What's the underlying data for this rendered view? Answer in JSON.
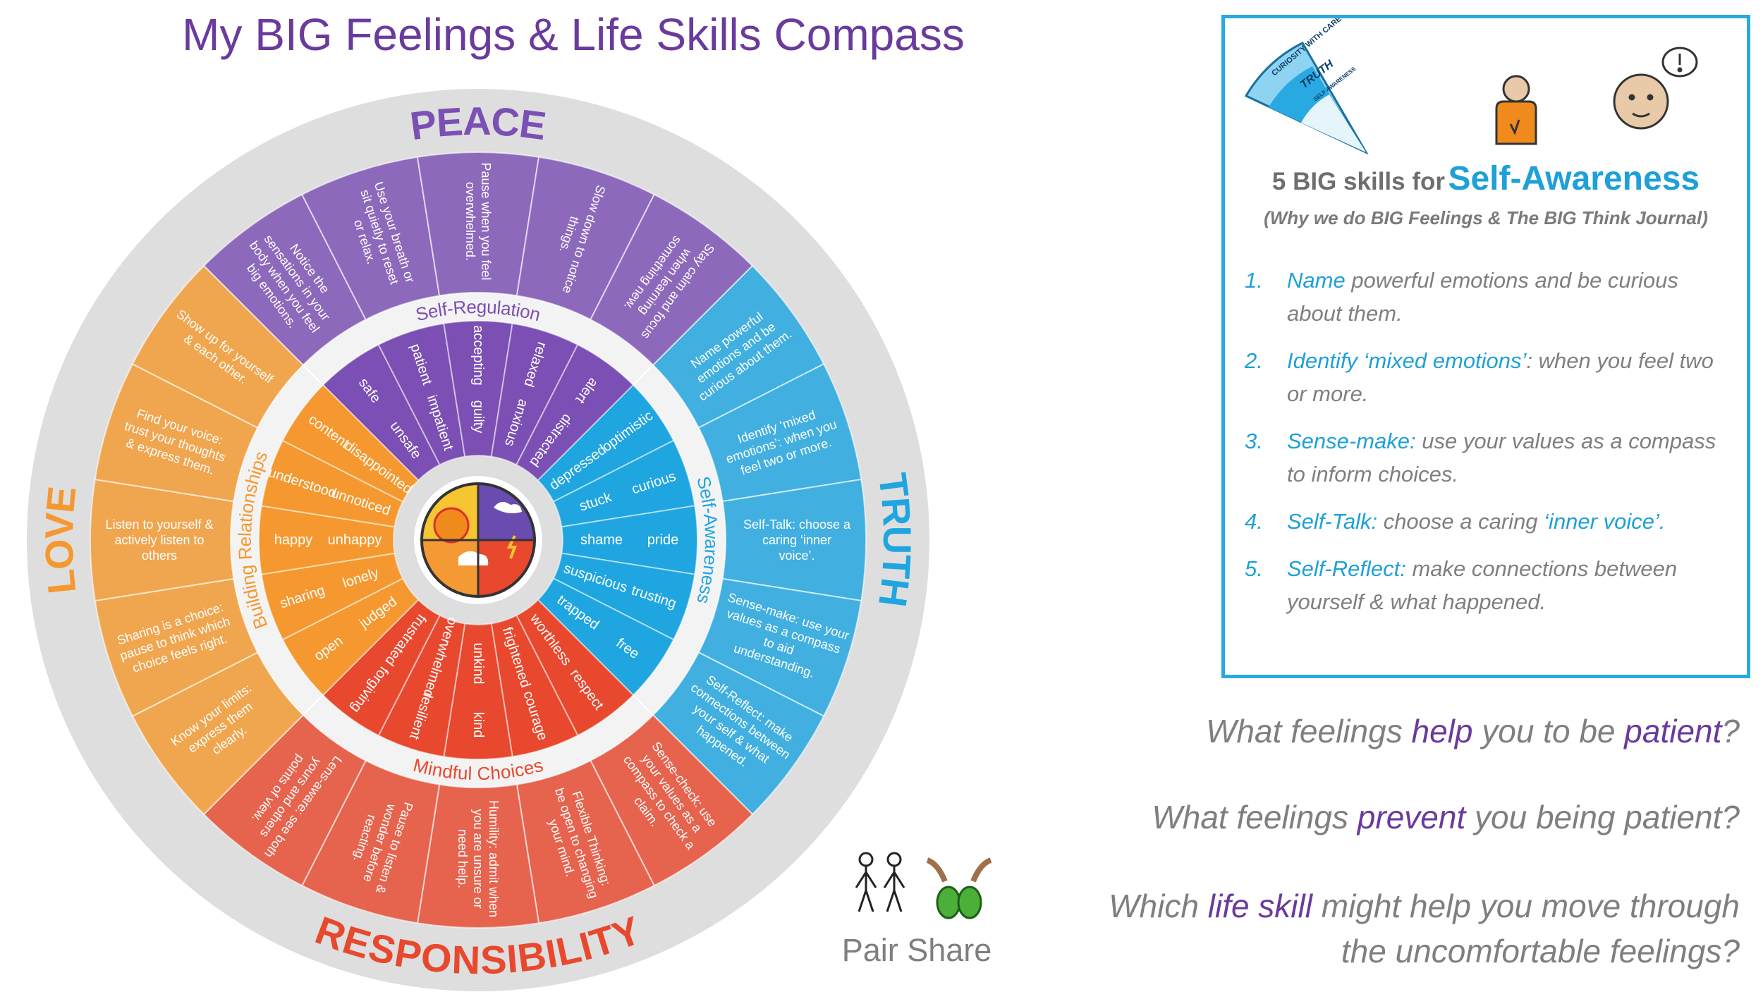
{
  "title": "My BIG Feelings & Life Skills Compass",
  "wheel": {
    "quadrants": [
      {
        "name": "PEACE",
        "color": "#7b4fb3",
        "skill_area": "Self-Regulation",
        "skills": [
          "Notice the sensations in your body when you feel big emotions.",
          "Use your breath or sit quietly to reset or relax.",
          "Pause when you feel overwhelmed.",
          "Slow down to notice things.",
          "Stay calm and focus when learning something new."
        ],
        "feelings": [
          {
            "positive": "safe",
            "negative": "unsafe"
          },
          {
            "positive": "patient",
            "negative": "impatient"
          },
          {
            "positive": "accepting",
            "negative": "guilty"
          },
          {
            "positive": "relaxed",
            "negative": "anxious"
          },
          {
            "positive": "alert",
            "negative": "distracted"
          }
        ]
      },
      {
        "name": "TRUTH",
        "color": "#1fa5e0",
        "skill_area": "Self-Awareness",
        "skills": [
          "Name powerful emotions and be curious about them.",
          "Identify ‘mixed emotions’: when you feel two or more.",
          "Self-Talk: choose a caring ‘inner voice’.",
          "Sense-make: use your values as a compass to aid understanding.",
          "Self-Reflect: make connections between your self & what happened."
        ],
        "feelings": [
          {
            "positive": "optimistic",
            "negative": "depressed"
          },
          {
            "positive": "curious",
            "negative": "stuck"
          },
          {
            "positive": "pride",
            "negative": "shame"
          },
          {
            "positive": "trusting",
            "negative": "suspicious"
          },
          {
            "positive": "free",
            "negative": "trapped"
          }
        ]
      },
      {
        "name": "RESPONSIBILITY",
        "color": "#e8482e",
        "skill_area": "Mindful Choices",
        "skills": [
          "Sense-check: use your values as a compass to check a claim.",
          "Flexible Thinking: be open to changing your mind.",
          "Humility: admit when you are unsure or need help.",
          "Pause to listen & wonder before reacting.",
          "Lens-aware: see both yours and others points of view."
        ],
        "feelings": [
          {
            "positive": "respect",
            "negative": "worthless"
          },
          {
            "positive": "courage",
            "negative": "frightened"
          },
          {
            "positive": "kind",
            "negative": "unkind"
          },
          {
            "positive": "resilient",
            "negative": "overwhelmed"
          },
          {
            "positive": "forgiving",
            "negative": "frustrated"
          }
        ]
      },
      {
        "name": "LOVE",
        "color": "#f4982f",
        "skill_area": "Building Relationships",
        "skills": [
          "Know your limits: express them clearly.",
          "Sharing is a choice: pause to think which choice feels right.",
          "Listen to yourself & actively listen to others",
          "Find your voice: trust your thoughts & express them.",
          "Show up for yourself & each other."
        ],
        "feelings": [
          {
            "positive": "open",
            "negative": "judged"
          },
          {
            "positive": "sharing",
            "negative": "lonely"
          },
          {
            "positive": "happy",
            "negative": "unhappy"
          },
          {
            "positive": "understood",
            "negative": "unnoticed"
          },
          {
            "positive": "content",
            "negative": "disappointed"
          }
        ]
      }
    ]
  },
  "skills_panel": {
    "fan_labels": [
      "CURIOSITY WITH CARE",
      "TRUTH",
      "SELF AWARENESS"
    ],
    "heading_prefix": "5 BIG skills for",
    "heading_highlight": "Self-Awareness",
    "subtitle": "(Why we do BIG Feelings & The BIG Think Journal)",
    "items": [
      {
        "number": "1.",
        "parts": [
          {
            "text": "Name",
            "color": "#1ea0d8"
          },
          {
            "text": " powerful emotions and be curious about them.",
            "color": "#7f7f7f"
          }
        ]
      },
      {
        "number": "2.",
        "parts": [
          {
            "text": "Identify ‘mixed emotions’",
            "color": "#1ea0d8"
          },
          {
            "text": ": when you feel two or more.",
            "color": "#7f7f7f"
          }
        ]
      },
      {
        "number": "3.",
        "parts": [
          {
            "text": "Sense-make:",
            "color": "#1ea0d8"
          },
          {
            "text": " use your values as a compass to inform choices.",
            "color": "#7f7f7f"
          }
        ]
      },
      {
        "number": "4.",
        "parts": [
          {
            "text": "Self-Talk:",
            "color": "#1ea0d8"
          },
          {
            "text": " choose a caring ",
            "color": "#7f7f7f"
          },
          {
            "text": "‘inner voice’.",
            "color": "#1ea0d8"
          }
        ]
      },
      {
        "number": "5.",
        "parts": [
          {
            "text": "Self-Reflect:",
            "color": "#1ea0d8"
          },
          {
            "text": " make connections between yourself & what happened.",
            "color": "#7f7f7f"
          }
        ]
      }
    ]
  },
  "questions": [
    {
      "parts": [
        {
          "text": "What feelings ",
          "color": "#7f7f7f"
        },
        {
          "text": "help",
          "color": "#6a3a9c"
        },
        {
          "text": " you to be ",
          "color": "#7f7f7f"
        },
        {
          "text": "patient",
          "color": "#6a3a9c"
        },
        {
          "text": "?",
          "color": "#7f7f7f"
        }
      ]
    },
    {
      "parts": [
        {
          "text": "What feelings ",
          "color": "#7f7f7f"
        },
        {
          "text": "prevent",
          "color": "#6a3a9c"
        },
        {
          "text": " you being patient?",
          "color": "#7f7f7f"
        }
      ]
    },
    {
      "parts": [
        {
          "text": "Which ",
          "color": "#7f7f7f"
        },
        {
          "text": "life skill",
          "color": "#6a3a9c"
        },
        {
          "text": " might help you move through the uncomfortable feelings?",
          "color": "#7f7f7f"
        }
      ]
    }
  ],
  "pair_share": "Pair Share"
}
